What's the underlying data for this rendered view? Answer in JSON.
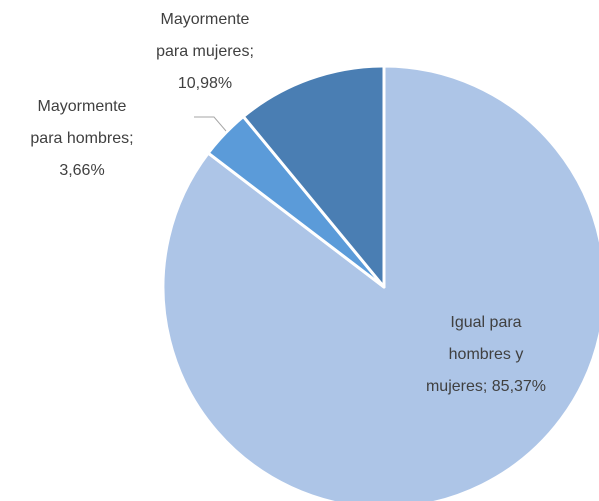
{
  "chart_data": {
    "type": "pie",
    "values": [
      85.37,
      3.66,
      10.98
    ],
    "value_labels": [
      "Igual para hombres y mujeres; 85,37%",
      "Mayormente para hombres; 3,66%",
      "Mayormente para mujeres; 10,98%"
    ],
    "colors": [
      "#adc5e7",
      "#5b9bd9",
      "#4a7eb3"
    ]
  }
}
